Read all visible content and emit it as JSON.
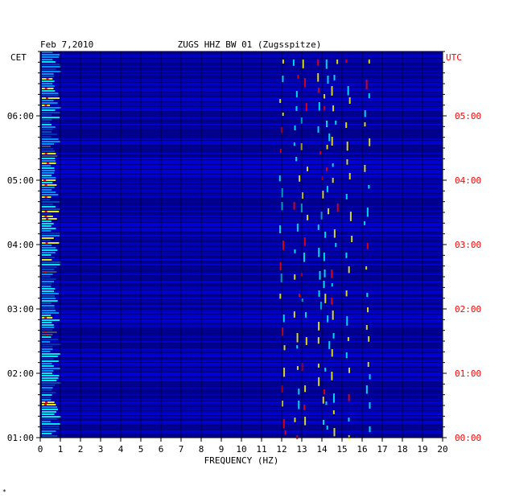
{
  "chart_data": {
    "type": "heatmap",
    "date": "Feb 7,2010",
    "title": "ZUGS HHZ BW 01 (Zugsspitze)",
    "xlabel": "FREQUENCY (HZ)",
    "left_axis_label": "CET",
    "right_axis_label": "UTC",
    "x_range": [
      0,
      20
    ],
    "x_ticks": [
      "0",
      "1",
      "2",
      "3",
      "4",
      "5",
      "6",
      "7",
      "8",
      "9",
      "10",
      "11",
      "12",
      "13",
      "14",
      "15",
      "16",
      "17",
      "18",
      "19",
      "20"
    ],
    "left_ticks": [
      "06:00",
      "05:00",
      "04:00",
      "03:00",
      "02:00",
      "01:00"
    ],
    "right_ticks": [
      "05:00",
      "04:00",
      "03:00",
      "02:00",
      "01:00",
      "00:00"
    ],
    "time_range_cet": [
      "01:00",
      "07:00"
    ],
    "grid": true,
    "colors": {
      "background": "#000080",
      "foreground": "#0000ff",
      "low_freq_high": "#ffff00",
      "peak": "#ff0000",
      "utc_label": "#ff0000",
      "axis": "#000000"
    }
  },
  "footnote": "*"
}
